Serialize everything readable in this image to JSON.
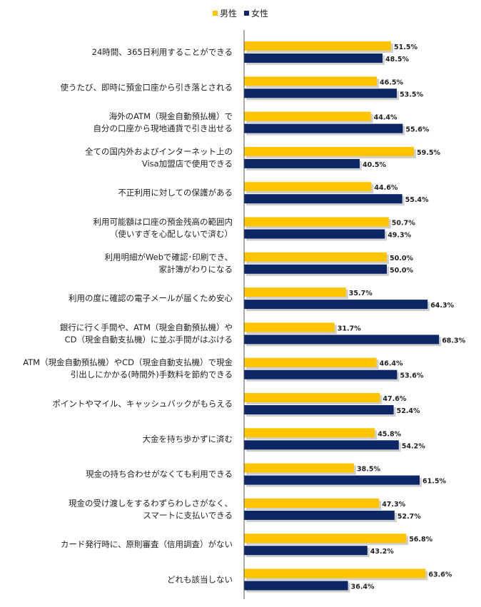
{
  "chart_data": {
    "type": "bar",
    "orientation": "horizontal",
    "legend_position": "top",
    "value_suffix": "%",
    "xlim": [
      0,
      100
    ],
    "grid": false,
    "categories": [
      [
        "24時間、365日利用することができる"
      ],
      [
        "使うたび、即時に預金口座から引き落とされる"
      ],
      [
        "海外のATM（現金自動預払機）で",
        "自分の口座から現地通貨で引き出せる"
      ],
      [
        "全ての国内外およびインターネット上の",
        "Visa加盟店で使用できる"
      ],
      [
        "不正利用に対しての保護がある"
      ],
      [
        "利用可能額は口座の預金残高の範囲内",
        "（使いすぎを心配しないで済む）"
      ],
      [
        "利用明細がWebで確認･印刷でき、",
        "家計簿がわりになる"
      ],
      [
        "利用の度に確認の電子メールが届くため安心"
      ],
      [
        "銀行に行く手間や、ATM（現金自動預払機）や",
        "CD（現金自動支払機）に並ぶ手間がはぶける"
      ],
      [
        "ATM（現金自動預払機）やCD（現金自動支払機）で現金",
        "引出しにかかる(時間外)手数料を節約できる"
      ],
      [
        "ポイントやマイル、キャッシュバックがもらえる"
      ],
      [
        "大金を持ち歩かずに済む"
      ],
      [
        "現金の持ち合わせがなくても利用できる"
      ],
      [
        "現金の受け渡しをするわずらわしさがなく、",
        "スマートに支払いできる"
      ],
      [
        "カード発行時に、原則審査（信用調査）がない"
      ],
      [
        "どれも該当しない"
      ]
    ],
    "series": [
      {
        "name": "男性",
        "color": "#FFC400",
        "values": [
          51.5,
          46.5,
          44.4,
          59.5,
          44.6,
          50.7,
          50.0,
          35.7,
          31.7,
          46.4,
          47.6,
          45.8,
          38.5,
          47.3,
          56.8,
          63.6
        ],
        "labels": [
          "51.5%",
          "46.5%",
          "44.4%",
          "59.5%",
          "44.6%",
          "50.7%",
          "50.0%",
          "35.7%",
          "31.7%",
          "46.4%",
          "47.6%",
          "45.8%",
          "38.5%",
          "47.3%",
          "56.8%",
          "63.6%"
        ]
      },
      {
        "name": "女性",
        "color": "#0D2766",
        "values": [
          48.5,
          53.5,
          55.6,
          40.5,
          55.4,
          49.3,
          50.0,
          64.3,
          68.3,
          53.6,
          52.4,
          54.2,
          61.5,
          52.7,
          43.2,
          36.4
        ],
        "labels": [
          "48.5%",
          "53.5%",
          "55.6%",
          "40.5%",
          "55.4%",
          "49.3%",
          "50.0%",
          "64.3%",
          "68.3%",
          "53.6%",
          "52.4%",
          "54.2%",
          "61.5%",
          "52.7%",
          "43.2%",
          "36.4%"
        ]
      }
    ]
  }
}
